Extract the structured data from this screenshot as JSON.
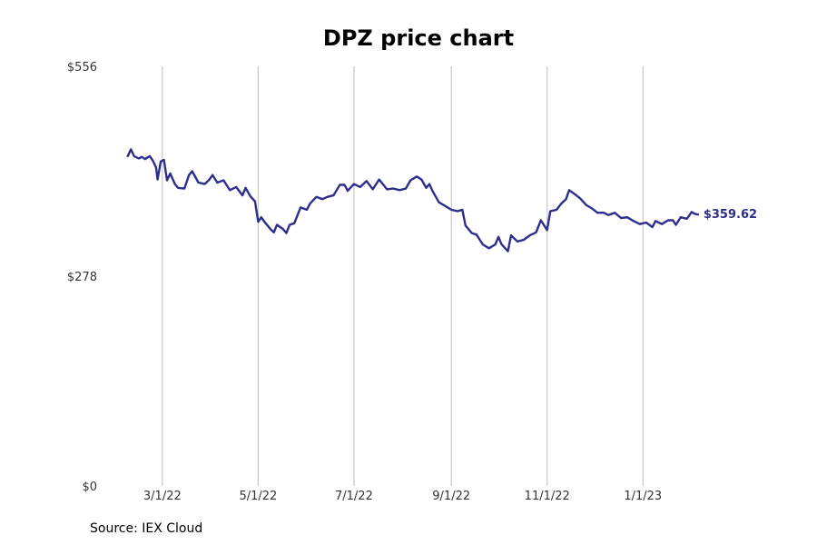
{
  "chart_data": {
    "type": "line",
    "title": "DPZ price chart",
    "xlabel": "",
    "ylabel": "",
    "source": "Source: IEX Cloud",
    "ylim": [
      0,
      556
    ],
    "yticks": [
      {
        "value": 0,
        "label": "$0"
      },
      {
        "value": 278,
        "label": "$278"
      },
      {
        "value": 556,
        "label": "$556"
      }
    ],
    "xlim": [
      "2022-01-26",
      "2023-02-23"
    ],
    "xticks": [
      {
        "date": "2022-03-01",
        "label": "3/1/22"
      },
      {
        "date": "2022-05-01",
        "label": "5/1/22"
      },
      {
        "date": "2022-07-01",
        "label": "7/1/22"
      },
      {
        "date": "2022-09-01",
        "label": "9/1/22"
      },
      {
        "date": "2022-11-01",
        "label": "11/1/22"
      },
      {
        "date": "2023-01-01",
        "label": "1/1/23"
      }
    ],
    "grid": "vertical",
    "line_color": "#2e2e8c",
    "last_value_label": "$359.62",
    "series": [
      {
        "color": "#2e2e8c",
        "points": [
          [
            "2022-02-07",
            437
          ],
          [
            "2022-02-09",
            446
          ],
          [
            "2022-02-11",
            437
          ],
          [
            "2022-02-14",
            434
          ],
          [
            "2022-02-16",
            436
          ],
          [
            "2022-02-18",
            433
          ],
          [
            "2022-02-21",
            437
          ],
          [
            "2022-02-23",
            431
          ],
          [
            "2022-02-25",
            422
          ],
          [
            "2022-02-26",
            406
          ],
          [
            "2022-02-28",
            430
          ],
          [
            "2022-03-02",
            432
          ],
          [
            "2022-03-04",
            405
          ],
          [
            "2022-03-06",
            414
          ],
          [
            "2022-03-09",
            400
          ],
          [
            "2022-03-11",
            395
          ],
          [
            "2022-03-15",
            394
          ],
          [
            "2022-03-18",
            412
          ],
          [
            "2022-03-20",
            417
          ],
          [
            "2022-03-24",
            402
          ],
          [
            "2022-03-28",
            400
          ],
          [
            "2022-03-31",
            406
          ],
          [
            "2022-04-02",
            412
          ],
          [
            "2022-04-05",
            402
          ],
          [
            "2022-04-09",
            405
          ],
          [
            "2022-04-13",
            392
          ],
          [
            "2022-04-17",
            396
          ],
          [
            "2022-04-21",
            385
          ],
          [
            "2022-04-23",
            395
          ],
          [
            "2022-04-26",
            384
          ],
          [
            "2022-04-29",
            377
          ],
          [
            "2022-05-01",
            350
          ],
          [
            "2022-05-03",
            356
          ],
          [
            "2022-05-05",
            350
          ],
          [
            "2022-05-09",
            340
          ],
          [
            "2022-05-11",
            336
          ],
          [
            "2022-05-13",
            346
          ],
          [
            "2022-05-17",
            340
          ],
          [
            "2022-05-19",
            335
          ],
          [
            "2022-05-21",
            346
          ],
          [
            "2022-05-24",
            348
          ],
          [
            "2022-05-28",
            369
          ],
          [
            "2022-06-01",
            366
          ],
          [
            "2022-06-03",
            374
          ],
          [
            "2022-06-07",
            383
          ],
          [
            "2022-06-11",
            380
          ],
          [
            "2022-06-14",
            383
          ],
          [
            "2022-06-18",
            385
          ],
          [
            "2022-06-22",
            399
          ],
          [
            "2022-06-25",
            399
          ],
          [
            "2022-06-27",
            391
          ],
          [
            "2022-07-01",
            400
          ],
          [
            "2022-07-05",
            396
          ],
          [
            "2022-07-09",
            404
          ],
          [
            "2022-07-13",
            393
          ],
          [
            "2022-07-17",
            406
          ],
          [
            "2022-07-22",
            393
          ],
          [
            "2022-07-26",
            394
          ],
          [
            "2022-07-30",
            392
          ],
          [
            "2022-08-03",
            394
          ],
          [
            "2022-08-06",
            405
          ],
          [
            "2022-08-10",
            410
          ],
          [
            "2022-08-13",
            406
          ],
          [
            "2022-08-16",
            395
          ],
          [
            "2022-08-18",
            400
          ],
          [
            "2022-08-20",
            391
          ],
          [
            "2022-08-24",
            376
          ],
          [
            "2022-08-28",
            371
          ],
          [
            "2022-09-01",
            366
          ],
          [
            "2022-09-05",
            364
          ],
          [
            "2022-09-08",
            366
          ],
          [
            "2022-09-10",
            345
          ],
          [
            "2022-09-14",
            335
          ],
          [
            "2022-09-17",
            333
          ],
          [
            "2022-09-21",
            320
          ],
          [
            "2022-09-25",
            315
          ],
          [
            "2022-09-29",
            320
          ],
          [
            "2022-10-01",
            330
          ],
          [
            "2022-10-03",
            320
          ],
          [
            "2022-10-07",
            311
          ],
          [
            "2022-10-09",
            332
          ],
          [
            "2022-10-13",
            324
          ],
          [
            "2022-10-17",
            326
          ],
          [
            "2022-10-21",
            332
          ],
          [
            "2022-10-25",
            336
          ],
          [
            "2022-10-28",
            352
          ],
          [
            "2022-11-01",
            339
          ],
          [
            "2022-11-03",
            364
          ],
          [
            "2022-11-07",
            366
          ],
          [
            "2022-11-10",
            374
          ],
          [
            "2022-11-13",
            380
          ],
          [
            "2022-11-15",
            392
          ],
          [
            "2022-11-19",
            386
          ],
          [
            "2022-11-22",
            381
          ],
          [
            "2022-11-26",
            372
          ],
          [
            "2022-11-30",
            367
          ],
          [
            "2022-12-03",
            362
          ],
          [
            "2022-12-07",
            362
          ],
          [
            "2022-12-10",
            359
          ],
          [
            "2022-12-14",
            362
          ],
          [
            "2022-12-18",
            355
          ],
          [
            "2022-12-22",
            356
          ],
          [
            "2022-12-26",
            351
          ],
          [
            "2022-12-30",
            347
          ],
          [
            "2023-01-03",
            349
          ],
          [
            "2023-01-07",
            343
          ],
          [
            "2023-01-09",
            351
          ],
          [
            "2023-01-13",
            347
          ],
          [
            "2023-01-17",
            352
          ],
          [
            "2023-01-20",
            352
          ],
          [
            "2023-01-22",
            346
          ],
          [
            "2023-01-25",
            356
          ],
          [
            "2023-01-29",
            354
          ],
          [
            "2023-02-01",
            363
          ],
          [
            "2023-02-03",
            360.5
          ],
          [
            "2023-02-05",
            359.62
          ]
        ]
      }
    ]
  }
}
